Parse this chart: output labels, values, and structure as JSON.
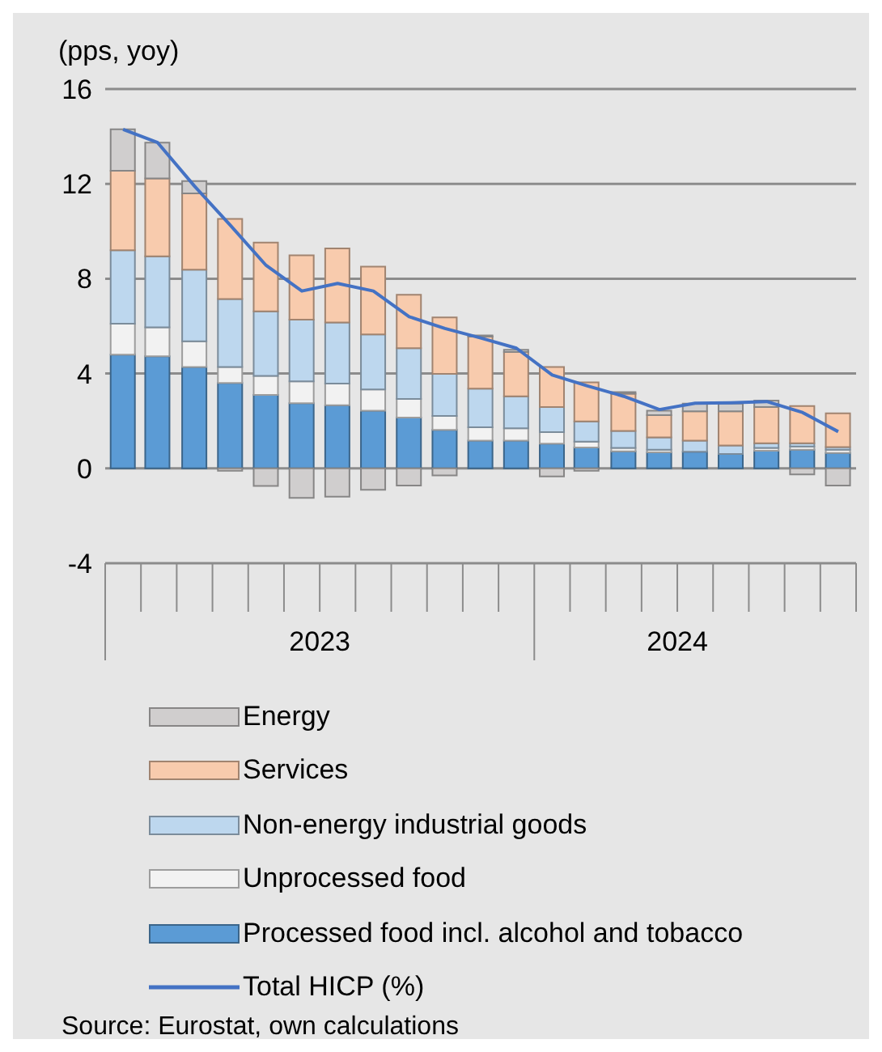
{
  "chart_data": {
    "type": "bar",
    "stacked": true,
    "ylabel": "(pps, yoy)",
    "x": [
      "2023-01-16",
      "2023-02-15",
      "2023-03-16",
      "2023-04-16",
      "2023-05-16",
      "2023-06-16",
      "2023-07-16",
      "2023-08-16",
      "2023-09-16",
      "2023-10-16",
      "2023-11-16",
      "2023-12-16",
      "2024-01-16",
      "2024-02-15",
      "2024-03-16",
      "2024-04-16",
      "2024-05-16",
      "2024-06-16",
      "2024-07-16",
      "2024-08-16",
      "2024-09-16"
    ],
    "xlim": [
      "2023-01-01",
      "2024-10-01"
    ],
    "xticks": [
      {
        "value": "2023-07-01",
        "label": "2023"
      },
      {
        "value": "2024-05-01",
        "label": "2024"
      }
    ],
    "ylim": [
      -4,
      16
    ],
    "yticks": [
      -4,
      0,
      4,
      8,
      12,
      16
    ],
    "grid": "y",
    "legend": "bottom",
    "series": [
      {
        "name": "Processed food incl. alcohol and tobacco",
        "color": "#5b9bd5",
        "values": [
          4.8,
          4.73,
          4.28,
          3.6,
          3.1,
          2.75,
          2.66,
          2.43,
          2.14,
          1.62,
          1.17,
          1.17,
          1.04,
          0.88,
          0.72,
          0.68,
          0.7,
          0.61,
          0.74,
          0.79,
          0.65
        ]
      },
      {
        "name": "Unprocessed food",
        "color": "#f2f2f2",
        "values": [
          1.3,
          1.22,
          1.08,
          0.68,
          0.8,
          0.92,
          0.92,
          0.9,
          0.79,
          0.59,
          0.56,
          0.52,
          0.49,
          0.25,
          0.14,
          0.11,
          0,
          0,
          0.12,
          0.13,
          0.14
        ]
      },
      {
        "name": "Non-energy industrial goods",
        "color": "#bdd7ee",
        "values": [
          3.1,
          2.99,
          3.02,
          2.86,
          2.72,
          2.6,
          2.57,
          2.32,
          2.14,
          1.78,
          1.63,
          1.35,
          1.06,
          0.85,
          0.72,
          0.52,
          0.47,
          0.36,
          0.2,
          0.14,
          0.11
        ]
      },
      {
        "name": "Services",
        "color": "#f8cbad",
        "values": [
          3.35,
          3.29,
          3.22,
          3.38,
          2.9,
          2.72,
          3.13,
          2.86,
          2.25,
          2.38,
          2.2,
          1.87,
          1.69,
          1.65,
          1.57,
          0.94,
          1.24,
          1.44,
          1.53,
          1.57,
          1.42
        ]
      },
      {
        "name": "Energy",
        "color": "#d0cece",
        "values": [
          1.75,
          1.51,
          0.52,
          -0.1,
          -0.74,
          -1.24,
          -1.19,
          -0.9,
          -0.72,
          -0.3,
          0.05,
          0.09,
          -0.34,
          -0.1,
          0.07,
          0.18,
          0.32,
          0.32,
          0.27,
          -0.25,
          -0.72
        ]
      },
      {
        "name": "Total HICP (%)",
        "type": "line",
        "color": "#4472c4",
        "values": [
          14.3,
          13.74,
          11.9,
          10.25,
          8.56,
          7.48,
          7.8,
          7.48,
          6.4,
          5.9,
          5.5,
          5.07,
          3.94,
          3.49,
          3.04,
          2.48,
          2.75,
          2.77,
          2.82,
          2.36,
          1.55
        ]
      }
    ],
    "annotations": [
      "Source: Eurostat, own calculations"
    ]
  }
}
